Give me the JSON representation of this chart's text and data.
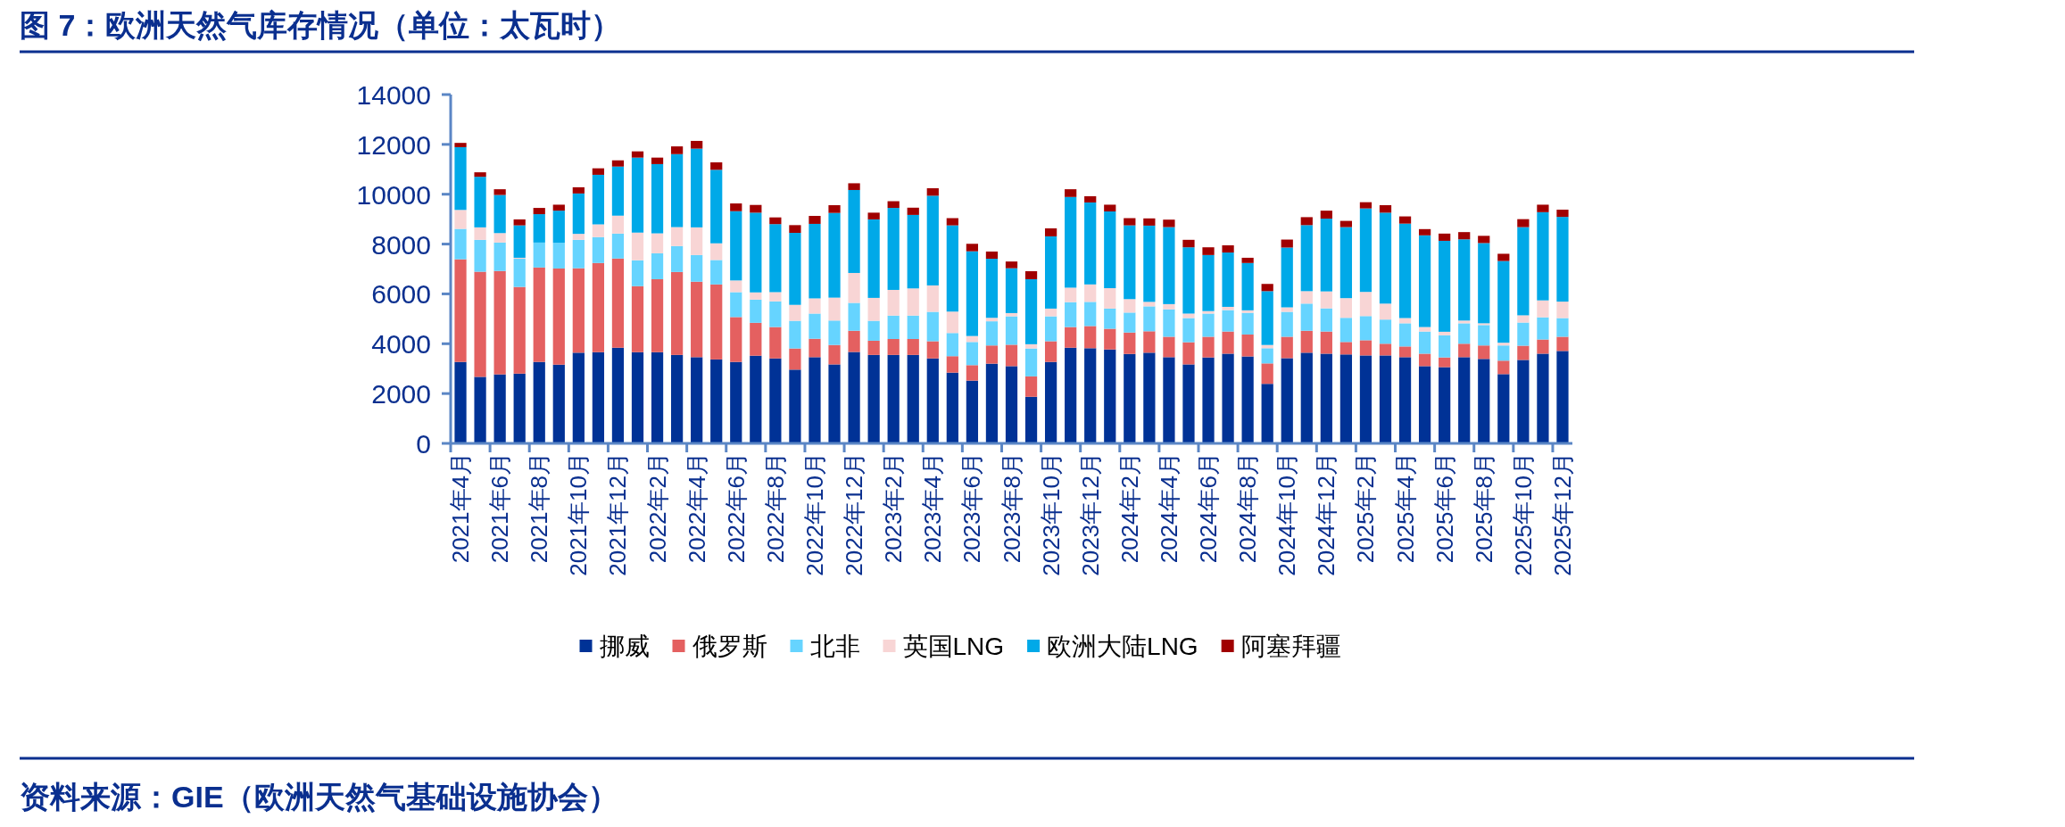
{
  "chart_data": {
    "type": "bar",
    "stacked": true,
    "title": "图 7：欧洲天然气库存情况（单位：太瓦时）",
    "annotations": [
      "资料来源：GIE（欧洲天然气基础设施协会）"
    ],
    "categories": [
      "2021年4月",
      null,
      "2021年6月",
      null,
      "2021年8月",
      null,
      "2021年10月",
      null,
      "2021年12月",
      null,
      "2022年2月",
      null,
      "2022年4月",
      null,
      "2022年6月",
      null,
      "2022年8月",
      null,
      "2022年10月",
      null,
      "2022年12月",
      null,
      "2023年2月",
      null,
      "2023年4月",
      null,
      "2023年6月",
      null,
      "2023年8月",
      null,
      "2023年10月",
      null,
      "2023年12月",
      null,
      "2024年2月",
      null,
      "2024年4月",
      null,
      "2024年6月",
      null,
      "2024年8月",
      null,
      "2024年10月",
      null,
      "2024年12月",
      null,
      "2025年2月",
      null,
      "2025年4月",
      null,
      "2025年6月",
      null,
      "2025年8月",
      null,
      "2025年10月",
      null,
      "2025年12月"
    ],
    "series": [
      {
        "name": "挪威",
        "color": "#003296",
        "values": [
          3270,
          2670,
          2770,
          2800,
          3270,
          3160,
          3640,
          3660,
          3840,
          3660,
          3660,
          3550,
          3460,
          3370,
          3270,
          3520,
          3410,
          2960,
          3460,
          3170,
          3670,
          3550,
          3550,
          3550,
          3410,
          2840,
          2520,
          3200,
          3100,
          1870,
          3270,
          3840,
          3820,
          3770,
          3590,
          3640,
          3460,
          3170,
          3450,
          3600,
          3490,
          2390,
          3420,
          3640,
          3600,
          3570,
          3530,
          3530,
          3460,
          3100,
          3060,
          3460,
          3390,
          2780,
          3350,
          3600,
          3710
        ]
      },
      {
        "name": "俄罗斯",
        "color": "#e46060",
        "values": [
          4120,
          4220,
          4150,
          3480,
          3790,
          3860,
          3390,
          3580,
          3580,
          2650,
          2930,
          3330,
          3030,
          3010,
          1800,
          1320,
          1260,
          850,
          740,
          780,
          850,
          570,
          640,
          640,
          690,
          660,
          620,
          730,
          860,
          820,
          830,
          830,
          890,
          830,
          860,
          860,
          820,
          890,
          830,
          890,
          880,
          820,
          860,
          880,
          890,
          500,
          610,
          470,
          430,
          500,
          390,
          540,
          540,
          540,
          570,
          570,
          570
        ]
      },
      {
        "name": "北非",
        "color": "#66d4ff",
        "values": [
          1220,
          1280,
          1140,
          1130,
          1000,
          1030,
          1140,
          1040,
          1000,
          1040,
          1040,
          1040,
          1070,
          980,
          1000,
          930,
          1030,
          1110,
          1010,
          980,
          1120,
          800,
          940,
          940,
          1180,
          930,
          930,
          970,
          1140,
          1120,
          1000,
          1000,
          970,
          810,
          800,
          1000,
          1100,
          970,
          930,
          860,
          870,
          610,
          1000,
          1090,
          930,
          970,
          970,
          970,
          930,
          890,
          890,
          820,
          820,
          610,
          930,
          890,
          750
        ]
      },
      {
        "name": "英国LNG",
        "color": "#f8d5d5",
        "values": [
          760,
          500,
          380,
          40,
          null,
          null,
          240,
          510,
          720,
          1110,
          800,
          760,
          1110,
          670,
          470,
          290,
          370,
          640,
          610,
          920,
          1200,
          920,
          1030,
          1090,
          1060,
          860,
          240,
          140,
          130,
          170,
          310,
          580,
          700,
          820,
          540,
          180,
          210,
          180,
          100,
          130,
          100,
          130,
          180,
          500,
          680,
          790,
          970,
          640,
          210,
          180,
          140,
          110,
          70,
          110,
          290,
          680,
          660
        ]
      },
      {
        "name": "欧洲大陆LNG",
        "color": "#00a9e8",
        "values": [
          2520,
          2030,
          1530,
          1300,
          1140,
          1290,
          1620,
          1990,
          1970,
          3010,
          2780,
          2930,
          3160,
          2950,
          2780,
          3200,
          2730,
          2890,
          2990,
          3400,
          3330,
          3150,
          3290,
          2950,
          3600,
          3460,
          3400,
          2370,
          1800,
          2610,
          2900,
          3640,
          3290,
          3080,
          2960,
          3060,
          3090,
          2660,
          2250,
          2180,
          1900,
          2160,
          2400,
          2650,
          2920,
          2850,
          3350,
          3650,
          3790,
          3680,
          3650,
          3260,
          3220,
          3280,
          3540,
          3540,
          3400
        ]
      },
      {
        "name": "阿塞拜疆",
        "color": "#a00000",
        "values": [
          170,
          180,
          230,
          240,
          250,
          240,
          250,
          260,
          250,
          250,
          260,
          310,
          310,
          300,
          310,
          310,
          270,
          310,
          320,
          310,
          270,
          270,
          270,
          290,
          300,
          290,
          300,
          290,
          270,
          320,
          320,
          310,
          250,
          270,
          290,
          290,
          300,
          300,
          310,
          290,
          210,
          290,
          320,
          320,
          320,
          250,
          250,
          300,
          290,
          250,
          290,
          290,
          290,
          290,
          320,
          300,
          290
        ]
      }
    ],
    "ylim": [
      0,
      14000
    ],
    "yticks": [
      0,
      2000,
      4000,
      6000,
      8000,
      10000,
      12000,
      14000
    ],
    "legend": "bottom",
    "grid": false
  }
}
